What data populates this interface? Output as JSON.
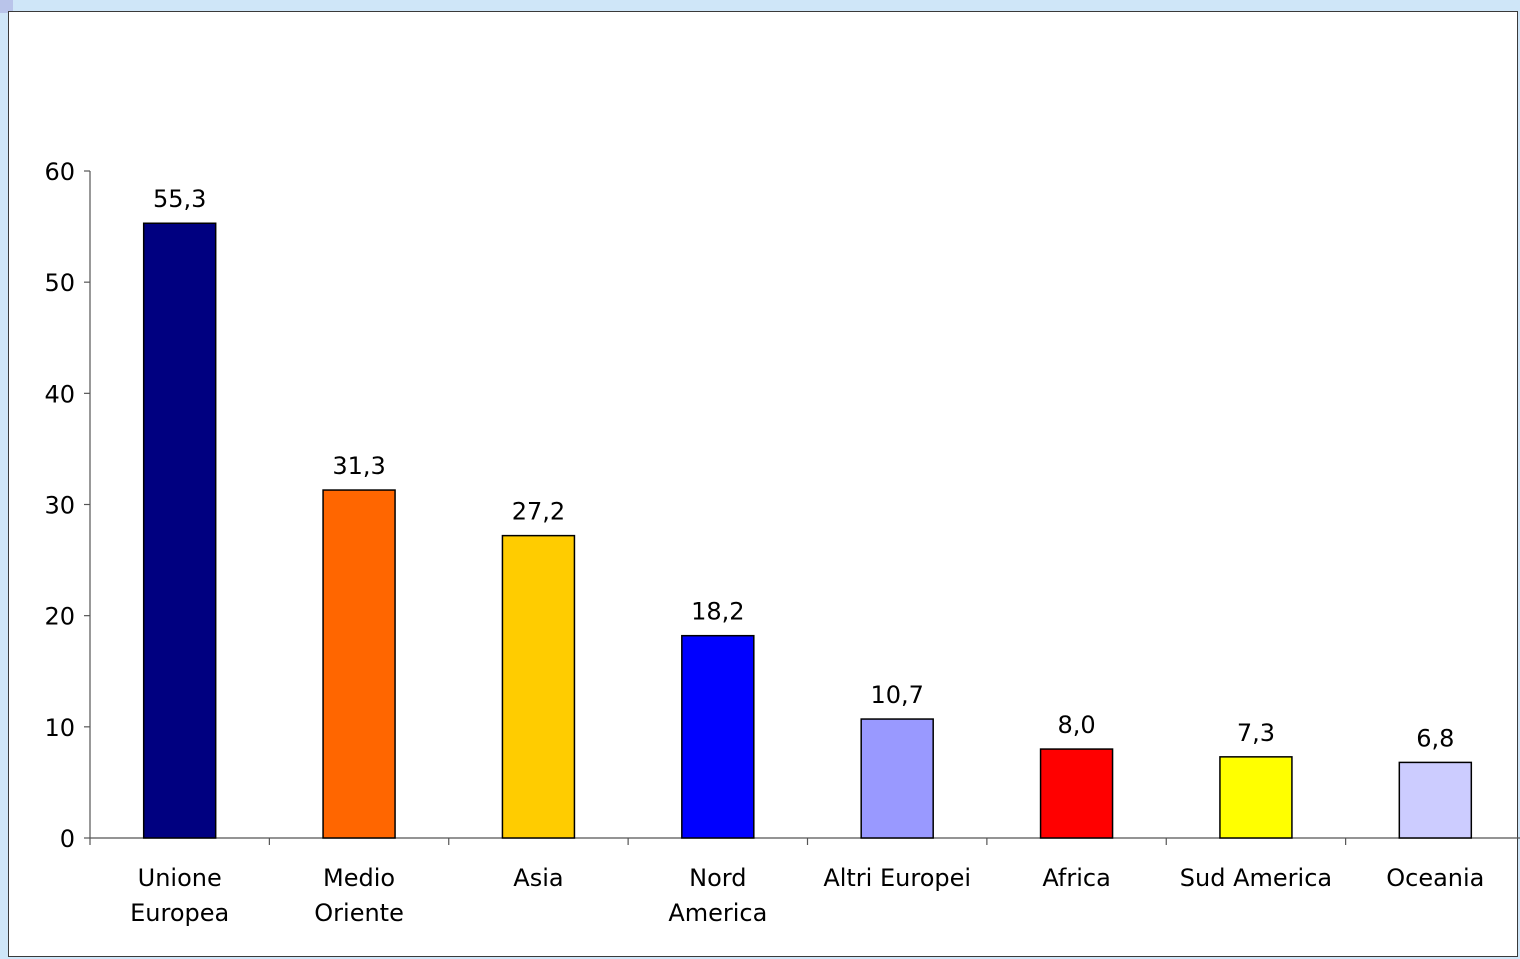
{
  "chart_data": {
    "type": "bar",
    "title": "",
    "xlabel": "",
    "ylabel": "",
    "ylim": [
      0,
      60
    ],
    "yticks": [
      0,
      10,
      20,
      30,
      40,
      50,
      60
    ],
    "grid": false,
    "legend": "none",
    "categories": [
      [
        "Unione",
        "Europea"
      ],
      [
        "Medio",
        "Oriente"
      ],
      [
        "Asia"
      ],
      [
        "Nord",
        "America"
      ],
      [
        "Altri Europei"
      ],
      [
        "Africa"
      ],
      [
        "Sud America"
      ],
      [
        "Oceania"
      ]
    ],
    "values": [
      55.3,
      31.3,
      27.2,
      18.2,
      10.7,
      8.0,
      7.3,
      6.8
    ],
    "value_labels": [
      "55,3",
      "31,3",
      "27,2",
      "18,2",
      "10,7",
      "8,0",
      "7,3",
      "6,8"
    ],
    "colors": [
      "#000080",
      "#ff6600",
      "#ffcc00",
      "#0000ff",
      "#9999ff",
      "#ff0000",
      "#ffff00",
      "#ccccff"
    ]
  }
}
